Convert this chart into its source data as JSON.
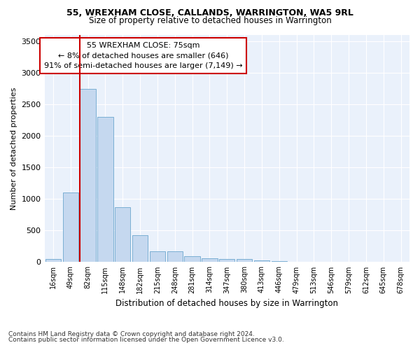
{
  "title1": "55, WREXHAM CLOSE, CALLANDS, WARRINGTON, WA5 9RL",
  "title2": "Size of property relative to detached houses in Warrington",
  "xlabel": "Distribution of detached houses by size in Warrington",
  "ylabel": "Number of detached properties",
  "categories": [
    "16sqm",
    "49sqm",
    "82sqm",
    "115sqm",
    "148sqm",
    "182sqm",
    "215sqm",
    "248sqm",
    "281sqm",
    "314sqm",
    "347sqm",
    "380sqm",
    "413sqm",
    "446sqm",
    "479sqm",
    "513sqm",
    "546sqm",
    "579sqm",
    "612sqm",
    "645sqm",
    "678sqm"
  ],
  "values": [
    50,
    1100,
    2750,
    2300,
    870,
    430,
    170,
    170,
    90,
    65,
    50,
    50,
    30,
    20,
    10,
    8,
    5,
    5,
    4,
    3,
    3
  ],
  "bar_color": "#c5d8ef",
  "bar_edge_color": "#7bafd4",
  "vline_color": "#cc0000",
  "annotation_text": "55 WREXHAM CLOSE: 75sqm\n← 8% of detached houses are smaller (646)\n91% of semi-detached houses are larger (7,149) →",
  "annotation_box_color": "#ffffff",
  "annotation_box_edge": "#cc0000",
  "ylim": [
    0,
    3600
  ],
  "yticks": [
    0,
    500,
    1000,
    1500,
    2000,
    2500,
    3000,
    3500
  ],
  "footnote1": "Contains HM Land Registry data © Crown copyright and database right 2024.",
  "footnote2": "Contains public sector information licensed under the Open Government Licence v3.0.",
  "plot_bg_color": "#eaf1fb"
}
